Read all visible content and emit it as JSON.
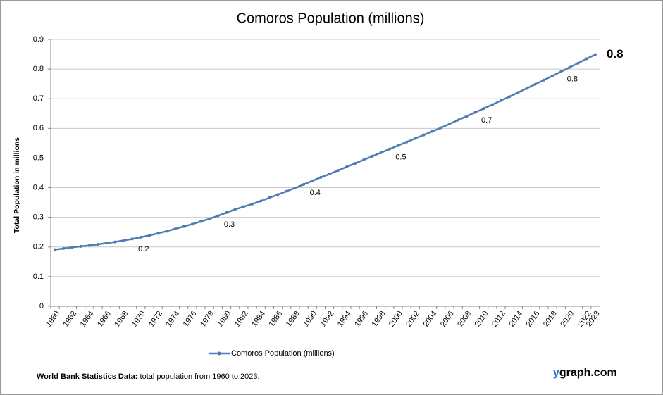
{
  "chart_data": {
    "type": "line",
    "title": "Comoros Population (millions)",
    "y_label": "Total Population  in millions",
    "footer_source": "World Bank Statistics Data:",
    "footer_text": "total population from 1960 to 2023.",
    "brand_prefix": "y",
    "brand": "graph.com",
    "categories": [
      "1960",
      null,
      "1962",
      null,
      "1964",
      null,
      "1966",
      null,
      "1968",
      null,
      "1970",
      null,
      "1972",
      null,
      "1974",
      null,
      "1976",
      null,
      "1978",
      null,
      "1980",
      null,
      "1982",
      null,
      "1984",
      null,
      "1986",
      null,
      "1988",
      null,
      "1990",
      null,
      "1992",
      null,
      "1994",
      null,
      "1996",
      null,
      "1998",
      null,
      "2000",
      null,
      "2002",
      null,
      "2004",
      null,
      "2006",
      null,
      "2008",
      null,
      "2010",
      null,
      "2012",
      null,
      "2014",
      null,
      "2016",
      null,
      "2018",
      null,
      "2020",
      null,
      "2022",
      "2023"
    ],
    "series": [
      {
        "name": "Comoros Population (millions)",
        "color": "#4f7ab3",
        "values": [
          0.191,
          0.195,
          0.199,
          0.202,
          0.205,
          0.209,
          0.213,
          0.217,
          0.222,
          0.227,
          0.233,
          0.239,
          0.246,
          0.253,
          0.261,
          0.269,
          0.277,
          0.286,
          0.295,
          0.305,
          0.316,
          0.327,
          0.336,
          0.345,
          0.355,
          0.366,
          0.377,
          0.388,
          0.399,
          0.411,
          0.423,
          0.435,
          0.446,
          0.458,
          0.47,
          0.482,
          0.494,
          0.506,
          0.518,
          0.53,
          0.542,
          0.554,
          0.566,
          0.578,
          0.59,
          0.602,
          0.615,
          0.628,
          0.641,
          0.654,
          0.667,
          0.68,
          0.694,
          0.707,
          0.721,
          0.735,
          0.749,
          0.763,
          0.777,
          0.791,
          0.806,
          0.82,
          0.835,
          0.849
        ],
        "value_labels": [
          null,
          null,
          null,
          null,
          null,
          null,
          null,
          null,
          null,
          null,
          "0.2",
          null,
          null,
          null,
          null,
          null,
          null,
          null,
          null,
          null,
          "0.3",
          null,
          null,
          null,
          null,
          null,
          null,
          null,
          null,
          null,
          "0.4",
          null,
          null,
          null,
          null,
          null,
          null,
          null,
          null,
          null,
          "0.5",
          null,
          null,
          null,
          null,
          null,
          null,
          null,
          null,
          null,
          "0.7",
          null,
          null,
          null,
          null,
          null,
          null,
          null,
          null,
          null,
          "0.8",
          null,
          null,
          "0.8"
        ]
      }
    ],
    "ylim": [
      0,
      0.9
    ],
    "yticks": [
      0,
      0.1,
      0.2,
      0.3,
      0.4,
      0.5,
      0.6,
      0.7,
      0.8,
      0.9
    ],
    "grid": true
  }
}
